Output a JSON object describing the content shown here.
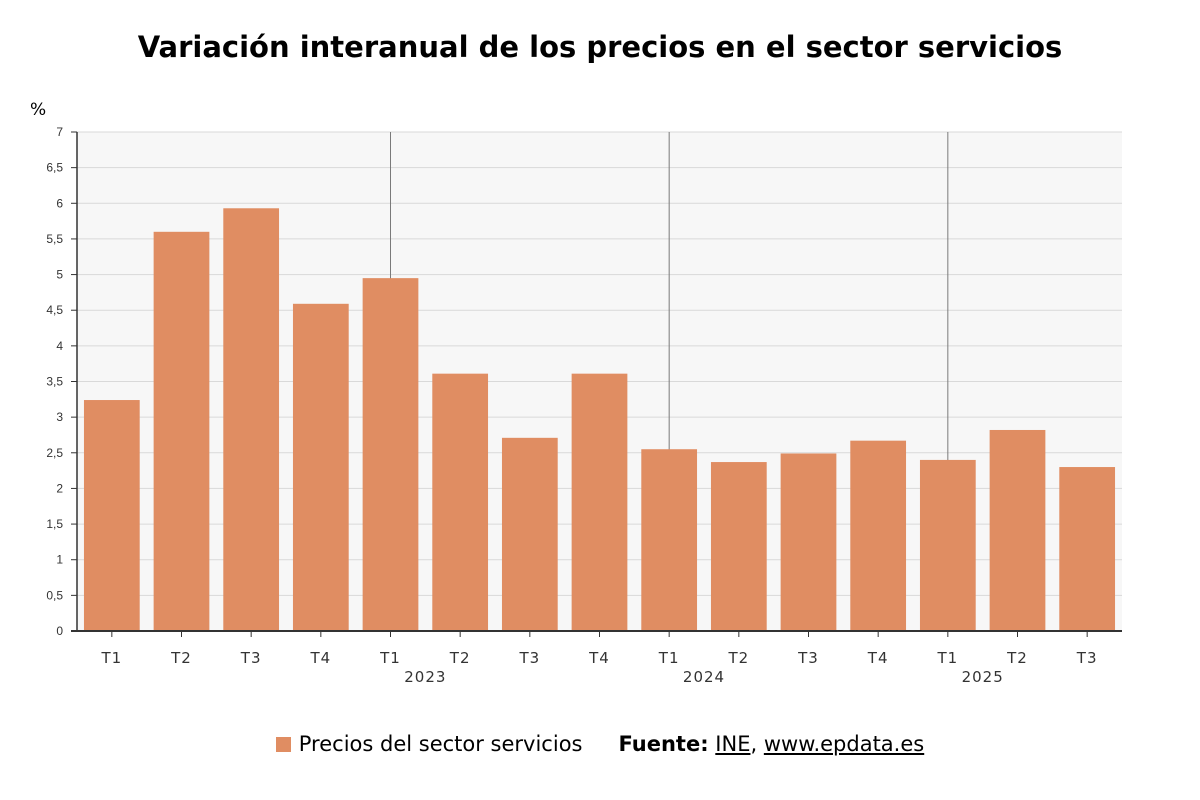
{
  "chart_data": {
    "type": "bar",
    "title": "Variación interanual de los precios en el sector servicios",
    "ylabel": "%",
    "ylim": [
      0,
      7
    ],
    "yticks": [
      "0",
      "0,5",
      "1",
      "1,5",
      "2",
      "2,5",
      "3",
      "3,5",
      "4",
      "4,5",
      "5",
      "5,5",
      "6",
      "6,5",
      "7"
    ],
    "categories": [
      "T1",
      "T2",
      "T3",
      "T4",
      "T1",
      "T2",
      "T3",
      "T4",
      "T1",
      "T2",
      "T3",
      "T4",
      "T1",
      "T2",
      "T3"
    ],
    "year_labels": [
      {
        "label": "2023",
        "first_index": 4,
        "last_index": 7
      },
      {
        "label": "2024",
        "first_index": 8,
        "last_index": 11
      },
      {
        "label": "2025",
        "first_index": 12,
        "last_index": 14
      }
    ],
    "series": [
      {
        "name": "Precios del sector servicios",
        "color": "#e08d62",
        "values": [
          3.24,
          5.6,
          5.93,
          4.59,
          4.95,
          3.61,
          2.71,
          3.61,
          2.55,
          2.37,
          2.49,
          2.67,
          2.4,
          2.82,
          2.3
        ]
      }
    ],
    "grid": true,
    "legend_position": "bottom"
  },
  "source": {
    "label": "Fuente:",
    "links": [
      "INE",
      "www.epdata.es"
    ],
    "separator": ","
  },
  "colors": {
    "bar": "#e08d62",
    "plot_background": "#f7f7f7",
    "grid": "#d9d9d9",
    "axis": "#333333",
    "year_separator": "#7a7a7a"
  }
}
